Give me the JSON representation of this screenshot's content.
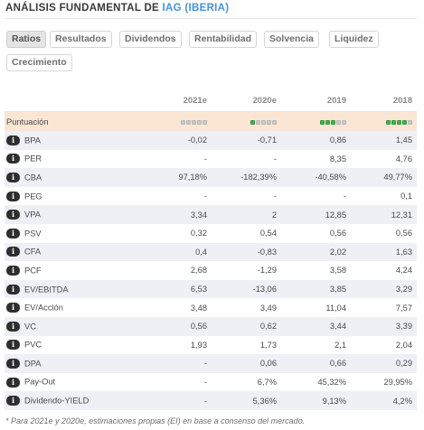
{
  "title": {
    "prefix": "ANÁLISIS FUNDAMENTAL DE ",
    "company": "IAG (IBERIA)"
  },
  "tabs": [
    {
      "label": "Ratios",
      "active": true
    },
    {
      "label": "Resultados",
      "active": false
    },
    {
      "label": "Dividendos",
      "active": false
    },
    {
      "label": "Rentabilidad",
      "active": false
    },
    {
      "label": "Solvencia",
      "active": false
    },
    {
      "label": "Liquidez",
      "active": false
    },
    {
      "label": "Crecimiento",
      "active": false
    }
  ],
  "table": {
    "columns": [
      "2021e",
      "2020e",
      "2019",
      "2018"
    ],
    "score": {
      "label": "Puntuación",
      "levels": [
        0,
        1,
        3,
        4
      ],
      "max": 5,
      "on_color": "#3fb350",
      "off_color": "#c8c8c8"
    },
    "icon": "info-icon",
    "rows": [
      {
        "label": "BPA",
        "values": [
          "-0,02",
          "-0,71",
          "0,86",
          "1,45"
        ]
      },
      {
        "label": "PER",
        "values": [
          "-",
          "-",
          "8,35",
          "4,76"
        ]
      },
      {
        "label": "CBA",
        "values": [
          "97,18%",
          "-182,39%",
          "-40,58%",
          "49,77%"
        ]
      },
      {
        "label": "PEG",
        "values": [
          "-",
          "-",
          "-",
          "0,1"
        ]
      },
      {
        "label": "VPA",
        "values": [
          "3,34",
          "2",
          "12,85",
          "12,31"
        ]
      },
      {
        "label": "PSV",
        "values": [
          "0,32",
          "0,54",
          "0,56",
          "0,56"
        ]
      },
      {
        "label": "CFA",
        "values": [
          "0,4",
          "-0,83",
          "2,02",
          "1,63"
        ]
      },
      {
        "label": "PCF",
        "values": [
          "2,68",
          "-1,29",
          "3,58",
          "4,24"
        ]
      },
      {
        "label": "EV/EBITDA",
        "values": [
          "6,53",
          "-13,06",
          "3,85",
          "3,29"
        ]
      },
      {
        "label": "EV/Acción",
        "values": [
          "3,48",
          "3,49",
          "11,04",
          "7,57"
        ]
      },
      {
        "label": "VC",
        "values": [
          "0,56",
          "0,62",
          "3,44",
          "3,39"
        ]
      },
      {
        "label": "PVC",
        "values": [
          "1,93",
          "1,73",
          "2,1",
          "2,04"
        ]
      },
      {
        "label": "DPA",
        "values": [
          "-",
          "0,06",
          "0,66",
          "0,29"
        ]
      },
      {
        "label": "Pay-Out",
        "values": [
          "-",
          "6,7%",
          "45,32%",
          "29,95%"
        ]
      },
      {
        "label": "Dividendo-YIELD",
        "values": [
          "-",
          "5,36%",
          "9,13%",
          "4,2%"
        ]
      }
    ]
  },
  "footnote": "* Para 2021e y 2020e, estimaciones propias (EI) en base a consenso del mercado.",
  "colors": {
    "accent": "#4a8fd6",
    "score_row_bg": "#fbe6d4",
    "stripe_bg": "#eef0f6"
  }
}
